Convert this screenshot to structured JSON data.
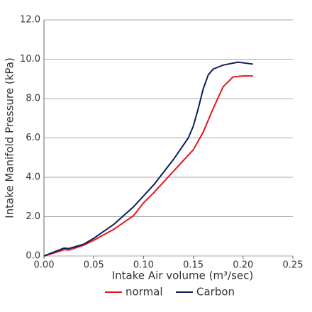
{
  "chart_data": {
    "type": "line",
    "x_label": "Intake Air volume (m³/sec)",
    "y_label": "Intake Manifold Pressure (kPa)",
    "xlim": [
      0,
      0.25
    ],
    "xticks": [
      {
        "value": 0,
        "label": "0.00"
      },
      {
        "value": 0.05,
        "label": "0.05"
      },
      {
        "value": 0.1,
        "label": "0.10"
      },
      {
        "value": 0.15,
        "label": "0.15"
      },
      {
        "value": 0.2,
        "label": "0.20"
      },
      {
        "value": 0.25,
        "label": "0.25"
      }
    ],
    "ylim": [
      0,
      12
    ],
    "yticks": [
      {
        "value": 0,
        "label": "0.0"
      },
      {
        "value": 2,
        "label": "2.0"
      },
      {
        "value": 4,
        "label": "4.0"
      },
      {
        "value": 6,
        "label": "6.0"
      },
      {
        "value": 8,
        "label": "8.0"
      },
      {
        "value": 10,
        "label": "10.0"
      },
      {
        "value": 12,
        "label": "12.0"
      }
    ],
    "grid": true,
    "legend": "bottom",
    "series": [
      {
        "name": "normal",
        "color": "#e8141e",
        "x": [
          0,
          0.01,
          0.02,
          0.025,
          0.03,
          0.04,
          0.05,
          0.07,
          0.09,
          0.1,
          0.11,
          0.13,
          0.15,
          0.16,
          0.17,
          0.18,
          0.19,
          0.2,
          0.21
        ],
        "values": [
          0,
          0.15,
          0.32,
          0.3,
          0.38,
          0.55,
          0.8,
          1.35,
          2.05,
          2.7,
          3.2,
          4.3,
          5.4,
          6.3,
          7.5,
          8.6,
          9.1,
          9.15,
          9.15
        ]
      },
      {
        "name": "Carbon",
        "color": "#0b1e5b",
        "x": [
          0,
          0.01,
          0.02,
          0.025,
          0.03,
          0.04,
          0.05,
          0.07,
          0.09,
          0.11,
          0.13,
          0.145,
          0.15,
          0.155,
          0.16,
          0.165,
          0.17,
          0.18,
          0.195,
          0.21
        ],
        "values": [
          0,
          0.2,
          0.4,
          0.38,
          0.45,
          0.6,
          0.9,
          1.6,
          2.5,
          3.6,
          4.9,
          6.0,
          6.6,
          7.5,
          8.5,
          9.2,
          9.5,
          9.7,
          9.85,
          9.75
        ]
      }
    ]
  }
}
